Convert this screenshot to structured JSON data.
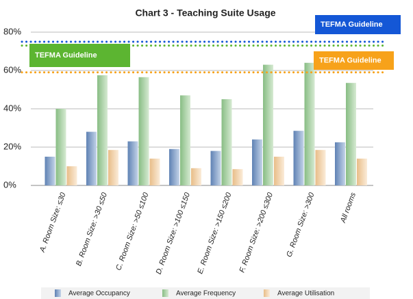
{
  "chart_data": {
    "type": "bar",
    "title": "Chart 3 - Teaching Suite Usage",
    "categories": [
      "A. Room Size: ≤30",
      "B. Room Size: >30 ≤50",
      "C. Room Size: >50 ≤100",
      "D. Room Size: >100 ≤150",
      "E. Room Size: >150 ≤200",
      "F. Room Size: >200 ≤300",
      "G. Room Size: >300",
      "All rooms"
    ],
    "series": [
      {
        "name": "Average Occupancy",
        "color": "#7f9fc8",
        "values": [
          15,
          28,
          23,
          19,
          18,
          24,
          28.5,
          22.5
        ]
      },
      {
        "name": "Average Frequency",
        "color": "#a8d0a2",
        "values": [
          40,
          57.5,
          56.5,
          47,
          45,
          63,
          64,
          53.5
        ]
      },
      {
        "name": "Average Utilisation",
        "color": "#f2d3ab",
        "values": [
          10,
          18.5,
          14,
          9,
          8.5,
          15,
          18.5,
          14
        ]
      }
    ],
    "guidelines": [
      {
        "label": "TEFMA Guideline",
        "value": 75,
        "color": "#1457d6"
      },
      {
        "label": "TEFMA Guideline",
        "value": 73,
        "color": "#5cb531"
      },
      {
        "label": "TEFMA Guideline",
        "value": 59,
        "color": "#f7a21a"
      }
    ],
    "ylim": [
      0,
      80
    ],
    "yticks": [
      {
        "value": 0,
        "label": "0%"
      },
      {
        "value": 20,
        "label": "20%"
      },
      {
        "value": 40,
        "label": "40%"
      },
      {
        "value": 60,
        "label": "60%"
      },
      {
        "value": 80,
        "label": "80%"
      }
    ],
    "grid": true
  }
}
